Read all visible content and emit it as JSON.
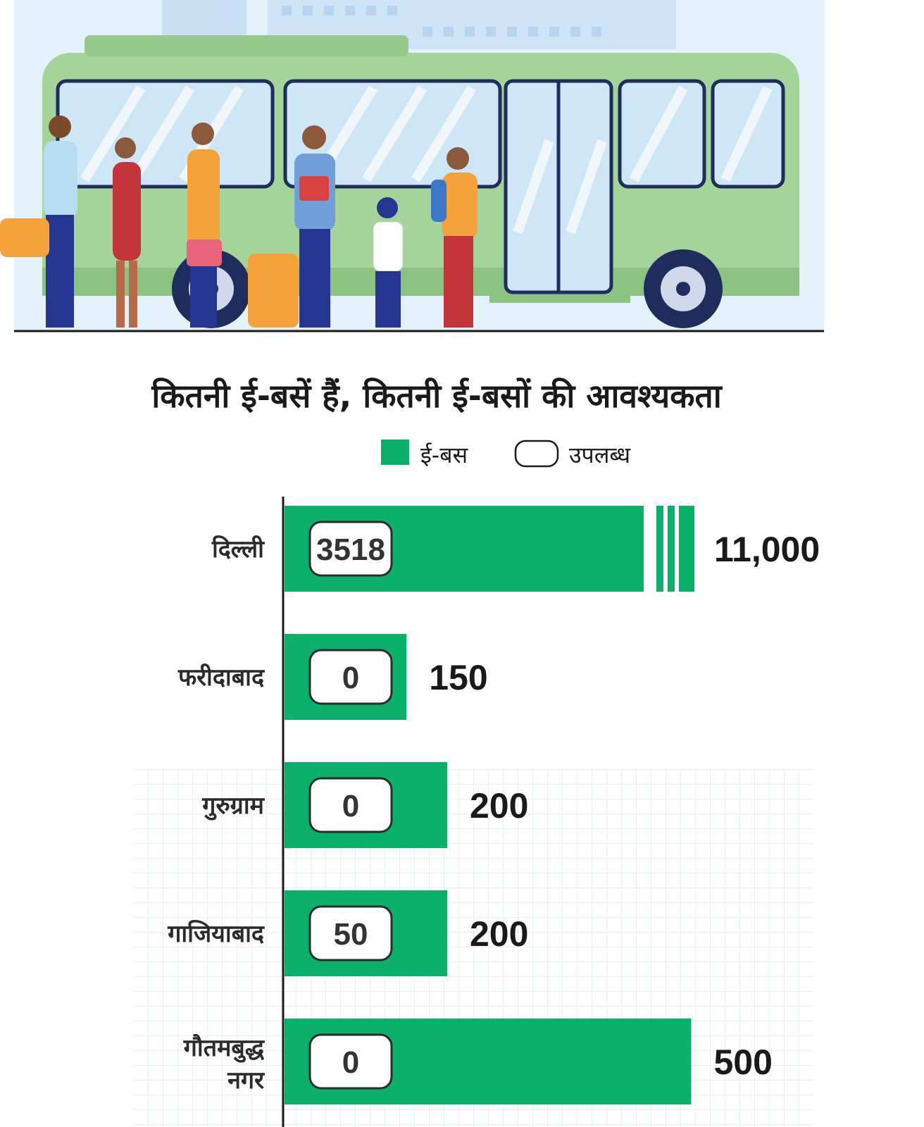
{
  "chart_data": {
    "type": "bar",
    "orientation": "horizontal",
    "title": "कितनी ई-बसें हैं, कितनी ई-बसों की आवश्यकता",
    "legend": [
      {
        "label": "ई-बस",
        "color": "#0cb06a",
        "style": "filled"
      },
      {
        "label": "उपलब्ध",
        "color": "#ffffff",
        "style": "outlined"
      }
    ],
    "legend_position": "top",
    "categories": [
      "दिल्ली",
      "फरीदाबाद",
      "गुरुग्राम",
      "गाजियाबाद",
      "गौतमबुद्ध नगर"
    ],
    "series": [
      {
        "name": "ई-बस",
        "values": [
          11000,
          150,
          200,
          200,
          500
        ],
        "labels": [
          "11,000",
          "150",
          "200",
          "200",
          "500"
        ]
      },
      {
        "name": "उपलब्ध",
        "values": [
          3518,
          0,
          0,
          50,
          0
        ],
        "labels": [
          "3518",
          "0",
          "0",
          "50",
          "0"
        ]
      }
    ],
    "axis_break_on_largest": true,
    "grid": false
  },
  "colors": {
    "bar": "#0cb06a",
    "sky": "#e3f1fb",
    "bus": "#a4d49a"
  }
}
